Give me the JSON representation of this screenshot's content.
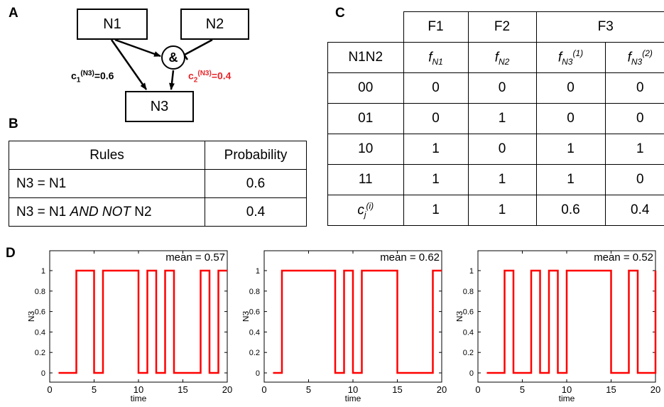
{
  "panels": {
    "a": "A",
    "b": "B",
    "c": "C",
    "d": "D"
  },
  "network": {
    "nodes": {
      "n1": "N1",
      "n2": "N2",
      "n3": "N3"
    },
    "and_symbol": "&",
    "coef1": {
      "prefix": "c",
      "sub": "1",
      "sup": "(N3)",
      "value": "=0.6",
      "color": "#000000"
    },
    "coef2": {
      "prefix": "c",
      "sub": "2",
      "sup": "(N3)",
      "value": "=0.4",
      "color": "#e8262b"
    }
  },
  "rules_table": {
    "headers": [
      "Rules",
      "Probability"
    ],
    "rows": [
      {
        "rule_parts": [
          "N3 = N1",
          "",
          ""
        ],
        "probability": "0.6"
      },
      {
        "rule_parts": [
          "N3 = N1 ",
          "AND NOT",
          " N2"
        ],
        "probability": "0.4"
      }
    ]
  },
  "truth_table": {
    "groups": [
      "F1",
      "F2",
      "F3"
    ],
    "row_header": "N1N2",
    "functions": [
      {
        "base": "f",
        "sub": "N1",
        "sup": ""
      },
      {
        "base": "f",
        "sub": "N2",
        "sup": ""
      },
      {
        "base": "f",
        "sub": "N3",
        "sup": "(1)"
      },
      {
        "base": "f",
        "sub": "N3",
        "sup": "(2)"
      }
    ],
    "rows": [
      {
        "input": "00",
        "values": [
          "0",
          "0",
          "0",
          "0"
        ]
      },
      {
        "input": "01",
        "values": [
          "0",
          "1",
          "0",
          "0"
        ]
      },
      {
        "input": "10",
        "values": [
          "1",
          "0",
          "1",
          "1"
        ]
      },
      {
        "input": "11",
        "values": [
          "1",
          "1",
          "1",
          "0"
        ]
      }
    ],
    "coef_row": {
      "base": "c",
      "sub": "j",
      "sup": "(i)",
      "values": [
        "1",
        "1",
        "0.6",
        "0.4"
      ]
    }
  },
  "chart_data": [
    {
      "type": "line",
      "xlabel": "time",
      "ylabel": "N3",
      "xlim": [
        0,
        20
      ],
      "ylim": [
        0,
        1
      ],
      "xticks": [
        0,
        5,
        10,
        15,
        20
      ],
      "yticks": [
        0,
        0.2,
        0.4,
        0.6,
        0.8,
        1
      ],
      "annotation": "mean = 0.57",
      "color": "#ff0000",
      "steps": [
        [
          1,
          0
        ],
        [
          3,
          1
        ],
        [
          5,
          0
        ],
        [
          6,
          1
        ],
        [
          10,
          0
        ],
        [
          11,
          1
        ],
        [
          12,
          0
        ],
        [
          13,
          1
        ],
        [
          14,
          0
        ],
        [
          17,
          1
        ],
        [
          18,
          0
        ],
        [
          19,
          1
        ],
        [
          20,
          1
        ]
      ]
    },
    {
      "type": "line",
      "xlabel": "time",
      "ylabel": "N3",
      "xlim": [
        0,
        20
      ],
      "ylim": [
        0,
        1
      ],
      "xticks": [
        0,
        5,
        10,
        15,
        20
      ],
      "yticks": [
        0,
        0.2,
        0.4,
        0.6,
        0.8,
        1
      ],
      "annotation": "mean = 0.62",
      "color": "#ff0000",
      "steps": [
        [
          1,
          0
        ],
        [
          2,
          1
        ],
        [
          8,
          0
        ],
        [
          9,
          1
        ],
        [
          10,
          0
        ],
        [
          11,
          1
        ],
        [
          15,
          0
        ],
        [
          19,
          1
        ],
        [
          20,
          1
        ]
      ]
    },
    {
      "type": "line",
      "xlabel": "time",
      "ylabel": "N3",
      "xlim": [
        0,
        20
      ],
      "ylim": [
        0,
        1
      ],
      "xticks": [
        0,
        5,
        10,
        15,
        20
      ],
      "yticks": [
        0,
        0.2,
        0.4,
        0.6,
        0.8,
        1
      ],
      "annotation": "mean = 0.52",
      "color": "#ff0000",
      "steps": [
        [
          1,
          0
        ],
        [
          3,
          1
        ],
        [
          4,
          0
        ],
        [
          6,
          1
        ],
        [
          7,
          0
        ],
        [
          8,
          1
        ],
        [
          9,
          0
        ],
        [
          10,
          1
        ],
        [
          15,
          0
        ],
        [
          17,
          1
        ],
        [
          18,
          0
        ],
        [
          20,
          1
        ]
      ]
    }
  ]
}
